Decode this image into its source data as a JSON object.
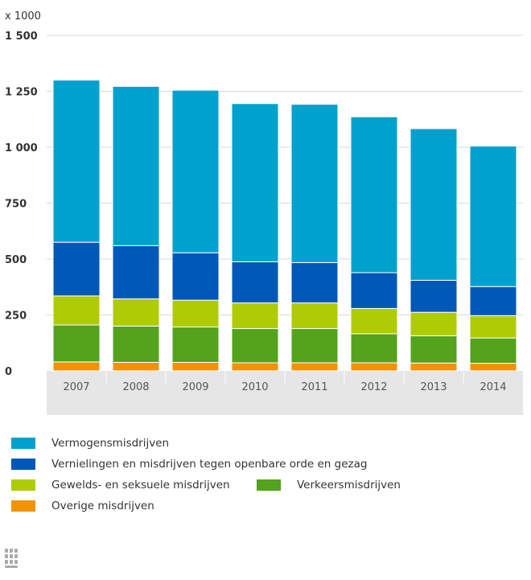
{
  "chart_data": {
    "type": "bar",
    "stacked": true,
    "unit_label": "x 1000",
    "categories": [
      "2007",
      "2008",
      "2009",
      "2010",
      "2011",
      "2012",
      "2013",
      "2014"
    ],
    "ylim": [
      0,
      1500
    ],
    "yticks": [
      "0",
      "250",
      "500",
      "750",
      "1 000",
      "1 250",
      "1 500"
    ],
    "ytick_values": [
      0,
      250,
      500,
      750,
      1000,
      1250,
      1500
    ],
    "grid": true,
    "legend_position": "bottom",
    "series": [
      {
        "name": "Overige misdrijven",
        "color": "#f39200",
        "values": [
          40,
          38,
          38,
          36,
          36,
          36,
          35,
          34
        ]
      },
      {
        "name": "Verkeersmisdrijven",
        "color": "#53a31d",
        "values": [
          165,
          162,
          158,
          153,
          153,
          130,
          122,
          113
        ]
      },
      {
        "name": "Gewelds- en seksuele misdrijven",
        "color": "#afcb05",
        "values": [
          130,
          122,
          120,
          115,
          115,
          113,
          105,
          100
        ]
      },
      {
        "name": "Vernielingen en misdrijven tegen openbare orde en gezag",
        "color": "#0058b8",
        "values": [
          240,
          238,
          212,
          184,
          180,
          160,
          143,
          130
        ]
      },
      {
        "name": "Vermogensmisdrijven",
        "color": "#00a1cd",
        "values": [
          725,
          712,
          727,
          707,
          708,
          697,
          678,
          628
        ]
      }
    ]
  },
  "legend": {
    "rows": [
      [
        {
          "series": 4,
          "label": "Vermogensmisdrijven"
        }
      ],
      [
        {
          "series": 3,
          "label": "Vernielingen en misdrijven tegen openbare orde en gezag"
        }
      ],
      [
        {
          "series": 2,
          "label": "Gewelds- en seksuele misdrijven"
        },
        {
          "series": 1,
          "label": "Verkeersmisdrijven"
        }
      ],
      [
        {
          "series": 0,
          "label": "Overige misdrijven"
        }
      ]
    ]
  }
}
